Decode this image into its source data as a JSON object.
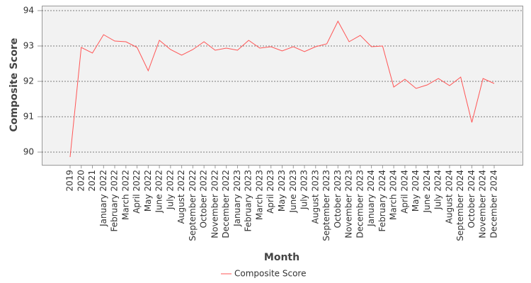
{
  "chart_data": {
    "type": "line",
    "x_label": "Month",
    "y_label": "Composite Score",
    "categories": [
      "2019",
      "2020",
      "2021",
      "January 2022",
      "February 2022",
      "March 2022",
      "April 2022",
      "May 2022",
      "June 2022",
      "July 2022",
      "August 2022",
      "September 2022",
      "October 2022",
      "November 2022",
      "December 2022",
      "January 2023",
      "February 2023",
      "March 2023",
      "April 2023",
      "May 2023",
      "June 2023",
      "July 2023",
      "August 2023",
      "September 2023",
      "October 2023",
      "November 2023",
      "December 2023",
      "January 2024",
      "February 2024",
      "March 2024",
      "April 2024",
      "May 2024",
      "June 2024",
      "July 2024",
      "August 2024",
      "September 2024",
      "October 2024",
      "November 2024",
      "December 2024"
    ],
    "series": [
      {
        "name": "Composite Score",
        "color": "#ff5555",
        "values": [
          89.86,
          92.96,
          92.8,
          93.32,
          93.14,
          93.12,
          92.96,
          92.3,
          93.16,
          92.9,
          92.74,
          92.9,
          93.12,
          92.88,
          92.94,
          92.88,
          93.16,
          92.94,
          92.98,
          92.86,
          92.98,
          92.84,
          92.98,
          93.06,
          93.7,
          93.12,
          93.3,
          92.98,
          93.0,
          91.84,
          92.06,
          91.8,
          91.9,
          92.08,
          91.88,
          92.12,
          90.84,
          92.08,
          91.94
        ]
      }
    ],
    "ylim": [
      89.64,
      94.14
    ],
    "yticks": [
      90,
      91,
      92,
      93,
      94
    ],
    "grid": true,
    "legend": "bottom"
  }
}
